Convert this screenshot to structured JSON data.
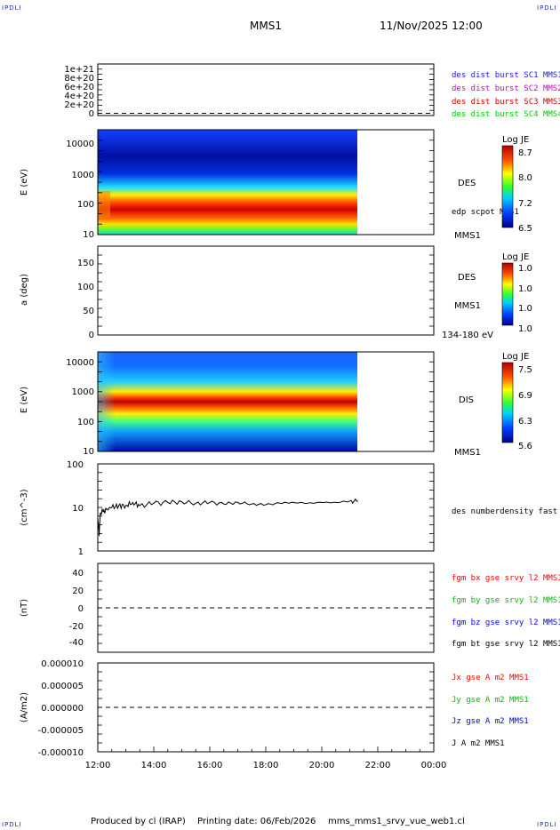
{
  "header": {
    "corner_tl": "IPDLI",
    "corner_tr": "IPDLI",
    "corner_bl": "IPDLI",
    "corner_br": "IPDLI",
    "spacecraft": "MMS1",
    "datetime": "11/Nov/2025 12:00"
  },
  "footer": {
    "produced_by": "Produced by cl (IRAP)",
    "printing_date": "Printing date: 06/Feb/2026",
    "filename": "mms_mms1_srvy_vue_web1.cl"
  },
  "colors": {
    "mms1": "#1a1aff",
    "mms2": "#cc00cc",
    "mms3": "#cc0000",
    "mms4": "#00cc00",
    "bx": "#ff0000",
    "by": "#00bb00",
    "bz": "#0000ff",
    "bt": "#000000"
  },
  "chart_data": [
    {
      "type": "line",
      "panel": "burst",
      "ylim": [
        0,
        1e+21
      ],
      "ytick_labels": [
        "1e+21",
        "8e+20",
        "6e+20",
        "4e+20",
        "2e+20",
        "0"
      ],
      "series": [
        {
          "name": "des dist burst SC1 MMS1",
          "values": []
        },
        {
          "name": "des dist burst SC2 MMS2",
          "values": []
        },
        {
          "name": "des dist burst SC3 MMS3",
          "values": []
        },
        {
          "name": "des dist burst SC4 MMS4",
          "values": []
        }
      ]
    },
    {
      "type": "heatmap",
      "panel": "des-energy",
      "ylabel": "E (eV)",
      "ytick_labels": [
        "10000",
        "1000",
        "100",
        "10"
      ],
      "label": "DES",
      "sublabel": "MMS1",
      "overlay_label": "edp scpot MMS1",
      "colorbar": {
        "title": "Log JE",
        "ticks": [
          "8.7",
          "8.0",
          "7.2",
          "6.5"
        ]
      }
    },
    {
      "type": "heatmap",
      "panel": "des-pitch",
      "ylabel": "a (deg)",
      "ytick_labels": [
        "150",
        "100",
        "50",
        "0"
      ],
      "label": "DES",
      "sublabel": "MMS1",
      "energy_range": "134-180 eV",
      "colorbar": {
        "title": "Log JE",
        "ticks": [
          "1.0",
          "1.0",
          "1.0",
          "1.0"
        ]
      }
    },
    {
      "type": "heatmap",
      "panel": "dis-energy",
      "ylabel": "E (eV)",
      "ytick_labels": [
        "10000",
        "1000",
        "100",
        "10"
      ],
      "label": "DIS",
      "sublabel": "MMS1",
      "colorbar": {
        "title": "Log JE",
        "ticks": [
          "7.5",
          "6.9",
          "6.3",
          "5.6"
        ]
      }
    },
    {
      "type": "line",
      "panel": "density",
      "ylabel": "(cm^-3)",
      "yscale": "log",
      "ytick_labels": [
        "100",
        "10",
        "1"
      ],
      "series": [
        {
          "name": "des numberdensity fast M",
          "x_hours": [
            12.0,
            12.05,
            12.1,
            12.15,
            12.2,
            12.3,
            12.5,
            12.75,
            13.0,
            13.25,
            13.5,
            14.0,
            14.5,
            15.0,
            15.5,
            16.0,
            16.5,
            17.0,
            17.5,
            18.0,
            18.5,
            19.0,
            19.5,
            20.0,
            20.5,
            21.0,
            21.3
          ],
          "values": [
            6.0,
            2.2,
            7.5,
            8.5,
            8.0,
            9.0,
            10.0,
            11.0,
            11.0,
            13.0,
            11.0,
            12.5,
            13.0,
            13.5,
            12.5,
            13.0,
            12.0,
            13.0,
            12.0,
            11.5,
            12.5,
            13.0,
            12.5,
            13.0,
            13.0,
            14.0,
            14.0
          ]
        }
      ]
    },
    {
      "type": "line",
      "panel": "fgm",
      "ylabel": "(nT)",
      "ylim": [
        -50,
        50
      ],
      "ytick_labels": [
        "40",
        "20",
        "0",
        "-20",
        "-40"
      ],
      "series": [
        {
          "name": "fgm bx gse srvy l2 MMS1",
          "values": []
        },
        {
          "name": "fgm by gse srvy l2 MMS1",
          "values": []
        },
        {
          "name": "fgm bz gse srvy l2 MMS1",
          "values": []
        },
        {
          "name": "fgm bt gse srvy l2 MMS1",
          "values": []
        }
      ]
    },
    {
      "type": "line",
      "panel": "current",
      "ylabel": "(A/m2)",
      "ylim": [
        -1e-05,
        1e-05
      ],
      "ytick_labels": [
        "0.000010",
        "0.000005",
        "0.000000",
        "-0.000005",
        "-0.000010"
      ],
      "series": [
        {
          "name": "Jx gse A m2 MMS1",
          "values": []
        },
        {
          "name": "Jy gse A m2 MMS1",
          "values": []
        },
        {
          "name": "Jz gse A m2 MMS1",
          "values": []
        },
        {
          "name": "J A m2 MMS1",
          "values": []
        }
      ]
    }
  ],
  "xaxis": {
    "tick_labels": [
      "12:00",
      "14:00",
      "16:00",
      "18:00",
      "20:00",
      "22:00",
      "00:00"
    ],
    "start_hour": 12,
    "end_hour": 24,
    "data_end_hour": 21.3
  }
}
